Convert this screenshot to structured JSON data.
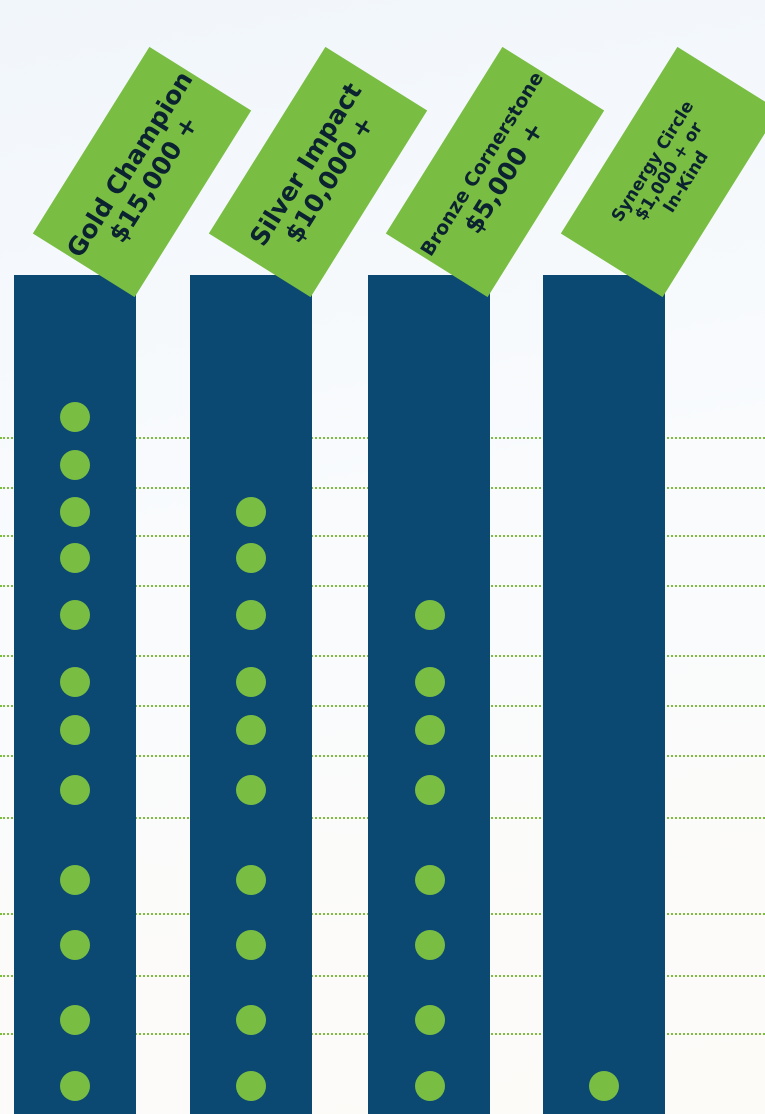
{
  "tiers": [
    {
      "line1": "Gold Champion",
      "line2": "$15,000 +",
      "line3": ""
    },
    {
      "line1": "Silver Impact",
      "line2": "$10,000 +",
      "line3": ""
    },
    {
      "line1": "Bronze Cornerstone",
      "line2": "$5,000 +",
      "line3": ""
    },
    {
      "line1": "Synergy Circle",
      "line2": "$1,000 + or",
      "line3": "In-Kind"
    }
  ],
  "benefit_matrix": [
    [
      true,
      false,
      false,
      false
    ],
    [
      true,
      false,
      false,
      false
    ],
    [
      true,
      true,
      false,
      false
    ],
    [
      true,
      true,
      false,
      false
    ],
    [
      true,
      true,
      true,
      false
    ],
    [
      true,
      true,
      true,
      false
    ],
    [
      true,
      true,
      true,
      false
    ],
    [
      true,
      true,
      true,
      false
    ],
    [
      true,
      true,
      true,
      false
    ],
    [
      true,
      true,
      true,
      false
    ],
    [
      true,
      true,
      true,
      false
    ],
    [
      true,
      true,
      true,
      true
    ]
  ],
  "colors": {
    "column": "#0b4872",
    "banner": "#79bd43",
    "dot": "#79bd43",
    "divider": "#7dbe3f"
  }
}
